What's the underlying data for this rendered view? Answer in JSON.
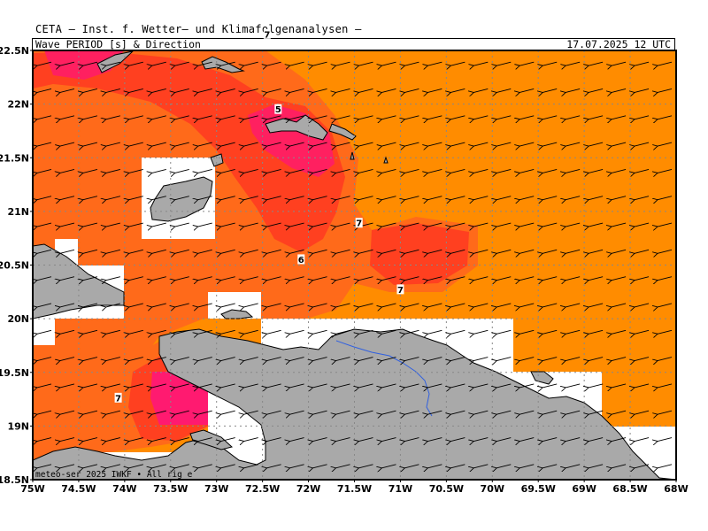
{
  "header": {
    "title": "CETA — Inst. f. Wetter— und Klimafolgenanalysen —",
    "subtitle": "Wave PERIOD [s] & Direction",
    "datetime": "17.07.2025 12 UTC"
  },
  "axes": {
    "lat_labels": [
      "22.5N",
      "22N",
      "21.5N",
      "21N",
      "20.5N",
      "20N",
      "19.5N",
      "19N",
      "18.5N"
    ],
    "lon_labels": [
      "75W",
      "74.5W",
      "74W",
      "73.5W",
      "73W",
      "72.5W",
      "72W",
      "71.5W",
      "71W",
      "70.5W",
      "70W",
      "69.5W",
      "69W",
      "68.5W",
      "68W"
    ]
  },
  "map": {
    "region": "Caribbean - Hispaniola / Bahamas",
    "lat_range": [
      18.5,
      22.5
    ],
    "lon_range": [
      -75,
      -68
    ],
    "colors": {
      "period_7s": "#ff8c00",
      "period_6s": "#ff6a1a",
      "period_5s": "#ff4020",
      "period_4s": "#ff2060",
      "land": "#a9a9a9",
      "no_data": "#ffffff",
      "river": "#3060e0"
    },
    "contour_labels": [
      {
        "text": "7",
        "lon": -72.45,
        "lat": 22.65
      },
      {
        "text": "5",
        "lon": -72.33,
        "lat": 21.95
      },
      {
        "text": "7",
        "lon": -71.45,
        "lat": 20.89
      },
      {
        "text": "6",
        "lon": -72.08,
        "lat": 20.55
      },
      {
        "text": "7",
        "lon": -71.0,
        "lat": 20.27
      },
      {
        "text": "7",
        "lon": -74.07,
        "lat": 19.26
      }
    ],
    "wave_direction": "from east-northeast",
    "credit": "meteo-ser          2025 IWKF • All rig         e"
  }
}
